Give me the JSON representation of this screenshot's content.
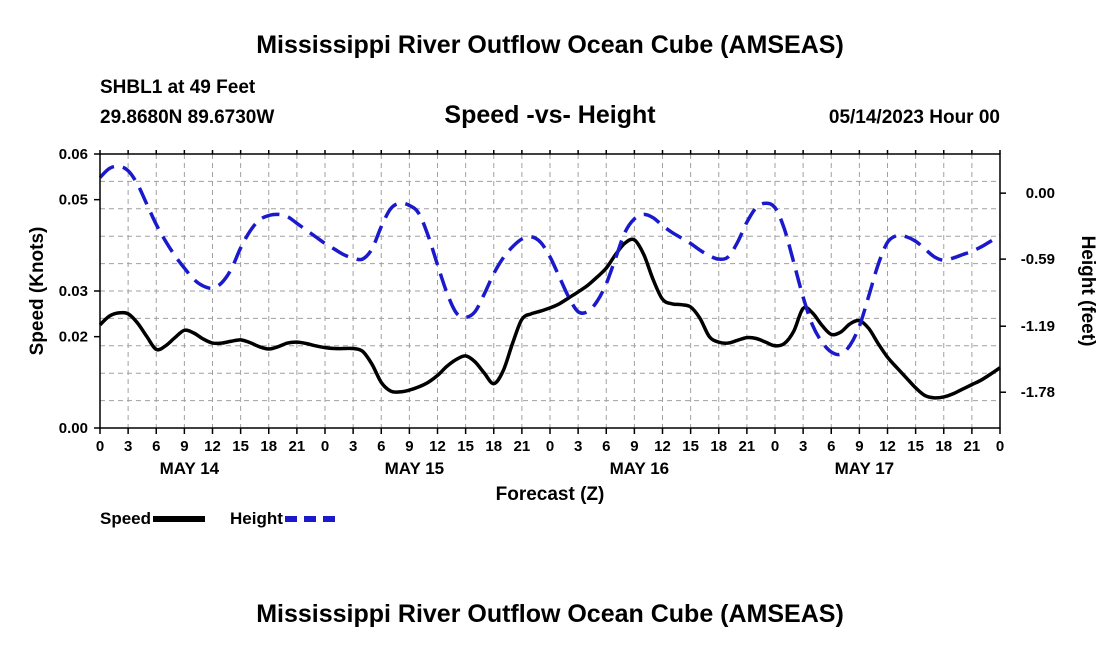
{
  "header": {
    "title": "Mississippi River Outflow Ocean Cube (AMSEAS)",
    "station": "SHBL1 at 49 Feet",
    "coords": "29.8680N  89.6730W",
    "subtitle": "Speed -vs- Height",
    "datetime": "05/14/2023 Hour 00"
  },
  "footer": {
    "title": "Mississippi River Outflow Ocean Cube (AMSEAS)"
  },
  "legend": {
    "speed_label": "Speed",
    "height_label": "Height"
  },
  "colors": {
    "speed": "#000000",
    "height": "#1a1acc",
    "grid": "#a0a0a0"
  },
  "chart_data": {
    "type": "line",
    "title": "Speed -vs- Height",
    "xlabel": "Forecast (Z)",
    "ylabel_left": "Speed (Knots)",
    "ylabel_right": "Height (feet)",
    "x_unit": "forecast hour",
    "xlim": [
      0,
      96
    ],
    "ylim_left": [
      0.0,
      0.06
    ],
    "ylim_right": [
      -2.1,
      0.35
    ],
    "x_tick_values": [
      0,
      3,
      6,
      9,
      12,
      15,
      18,
      21,
      24,
      27,
      30,
      33,
      36,
      39,
      42,
      45,
      48,
      51,
      54,
      57,
      60,
      63,
      66,
      69,
      72,
      75,
      78,
      81,
      84,
      87,
      90,
      93,
      96
    ],
    "x_tick_labels": [
      "0",
      "3",
      "6",
      "9",
      "12",
      "15",
      "18",
      "21",
      "0",
      "3",
      "6",
      "9",
      "12",
      "15",
      "18",
      "21",
      "0",
      "3",
      "6",
      "9",
      "12",
      "15",
      "18",
      "21",
      "0",
      "3",
      "6",
      "9",
      "12",
      "15",
      "18",
      "21",
      "0"
    ],
    "date_labels": [
      {
        "label": "MAY 14",
        "hour": 9
      },
      {
        "label": "MAY 15",
        "hour": 33
      },
      {
        "label": "MAY 16",
        "hour": 57
      },
      {
        "label": "MAY 17",
        "hour": 81
      }
    ],
    "left_ticks": [
      {
        "value": 0.0,
        "label": "0.00"
      },
      {
        "value": 0.02,
        "label": "0.02"
      },
      {
        "value": 0.03,
        "label": "0.03"
      },
      {
        "value": 0.05,
        "label": "0.05"
      },
      {
        "value": 0.06,
        "label": "0.06"
      }
    ],
    "right_ticks": [
      {
        "value": 0.0,
        "label": "0.00"
      },
      {
        "value": -0.59,
        "label": "-0.59"
      },
      {
        "value": -1.19,
        "label": "-1.19"
      },
      {
        "value": -1.78,
        "label": "-1.78"
      }
    ],
    "series": [
      {
        "name": "Speed",
        "axis": "left",
        "style": "solid",
        "x": [
          0,
          1,
          2,
          3,
          4,
          5,
          6,
          7,
          8,
          9,
          10,
          11,
          12,
          13,
          14,
          15,
          16,
          17,
          18,
          19,
          20,
          21,
          22,
          23,
          24,
          25,
          26,
          27,
          28,
          29,
          30,
          31,
          32,
          33,
          34,
          35,
          36,
          37,
          38,
          39,
          40,
          41,
          42,
          43,
          44,
          45,
          46,
          47,
          48,
          49,
          50,
          51,
          52,
          53,
          54,
          55,
          56,
          57,
          58,
          59,
          60,
          61,
          62,
          63,
          64,
          65,
          66,
          67,
          68,
          69,
          70,
          71,
          72,
          73,
          74,
          75,
          76,
          77,
          78,
          79,
          80,
          81,
          82,
          83,
          84,
          85,
          86,
          87,
          88,
          89,
          90,
          91,
          92,
          93,
          94,
          95,
          96
        ],
        "values": [
          0.0226,
          0.0245,
          0.0252,
          0.025,
          0.023,
          0.02,
          0.0172,
          0.018,
          0.0198,
          0.0214,
          0.0208,
          0.0195,
          0.0186,
          0.0186,
          0.019,
          0.0193,
          0.0187,
          0.0178,
          0.0173,
          0.0178,
          0.0186,
          0.0188,
          0.0185,
          0.018,
          0.0176,
          0.0174,
          0.0174,
          0.0174,
          0.0168,
          0.014,
          0.01,
          0.0081,
          0.0079,
          0.0083,
          0.009,
          0.01,
          0.0115,
          0.0135,
          0.015,
          0.0158,
          0.0145,
          0.012,
          0.0097,
          0.0125,
          0.0185,
          0.0238,
          0.025,
          0.0256,
          0.0263,
          0.0272,
          0.0285,
          0.0298,
          0.0312,
          0.033,
          0.035,
          0.038,
          0.0405,
          0.0412,
          0.038,
          0.0325,
          0.0282,
          0.0272,
          0.027,
          0.0265,
          0.024,
          0.02,
          0.0188,
          0.0186,
          0.0192,
          0.0198,
          0.0196,
          0.0188,
          0.018,
          0.0185,
          0.0212,
          0.0262,
          0.0252,
          0.0225,
          0.0205,
          0.021,
          0.0228,
          0.0235,
          0.0218,
          0.0185,
          0.0155,
          0.0132,
          0.011,
          0.0088,
          0.0071,
          0.0066,
          0.0068,
          0.0075,
          0.0085,
          0.0095,
          0.0105,
          0.0118,
          0.0132
        ]
      },
      {
        "name": "Height",
        "axis": "right",
        "style": "dashed",
        "x": [
          0,
          1,
          2,
          3,
          4,
          5,
          6,
          7,
          8,
          9,
          10,
          11,
          12,
          13,
          14,
          15,
          16,
          17,
          18,
          19,
          20,
          21,
          22,
          23,
          24,
          25,
          26,
          27,
          28,
          29,
          30,
          31,
          32,
          33,
          34,
          35,
          36,
          37,
          38,
          39,
          40,
          41,
          42,
          43,
          44,
          45,
          46,
          47,
          48,
          49,
          50,
          51,
          52,
          53,
          54,
          55,
          56,
          57,
          58,
          59,
          60,
          61,
          62,
          63,
          64,
          65,
          66,
          67,
          68,
          69,
          70,
          71,
          72,
          73,
          74,
          75,
          76,
          77,
          78,
          79,
          80,
          81,
          82,
          83,
          84,
          85,
          86,
          87,
          88,
          89,
          90,
          91,
          92,
          93,
          94,
          95,
          96
        ],
        "values": [
          0.14,
          0.22,
          0.24,
          0.2,
          0.08,
          -0.1,
          -0.28,
          -0.43,
          -0.56,
          -0.67,
          -0.77,
          -0.83,
          -0.85,
          -0.8,
          -0.68,
          -0.49,
          -0.34,
          -0.24,
          -0.2,
          -0.19,
          -0.21,
          -0.27,
          -0.33,
          -0.39,
          -0.45,
          -0.5,
          -0.55,
          -0.58,
          -0.59,
          -0.5,
          -0.3,
          -0.14,
          -0.09,
          -0.11,
          -0.18,
          -0.38,
          -0.64,
          -0.89,
          -1.07,
          -1.11,
          -1.06,
          -0.9,
          -0.72,
          -0.58,
          -0.48,
          -0.41,
          -0.39,
          -0.44,
          -0.57,
          -0.75,
          -0.93,
          -1.06,
          -1.06,
          -0.97,
          -0.81,
          -0.58,
          -0.35,
          -0.23,
          -0.19,
          -0.22,
          -0.29,
          -0.35,
          -0.4,
          -0.45,
          -0.51,
          -0.56,
          -0.59,
          -0.57,
          -0.44,
          -0.26,
          -0.13,
          -0.09,
          -0.13,
          -0.32,
          -0.62,
          -0.93,
          -1.18,
          -1.33,
          -1.42,
          -1.44,
          -1.36,
          -1.19,
          -0.92,
          -0.64,
          -0.44,
          -0.38,
          -0.39,
          -0.43,
          -0.5,
          -0.57,
          -0.6,
          -0.58,
          -0.55,
          -0.52,
          -0.48,
          -0.43,
          -0.38
        ]
      }
    ]
  }
}
